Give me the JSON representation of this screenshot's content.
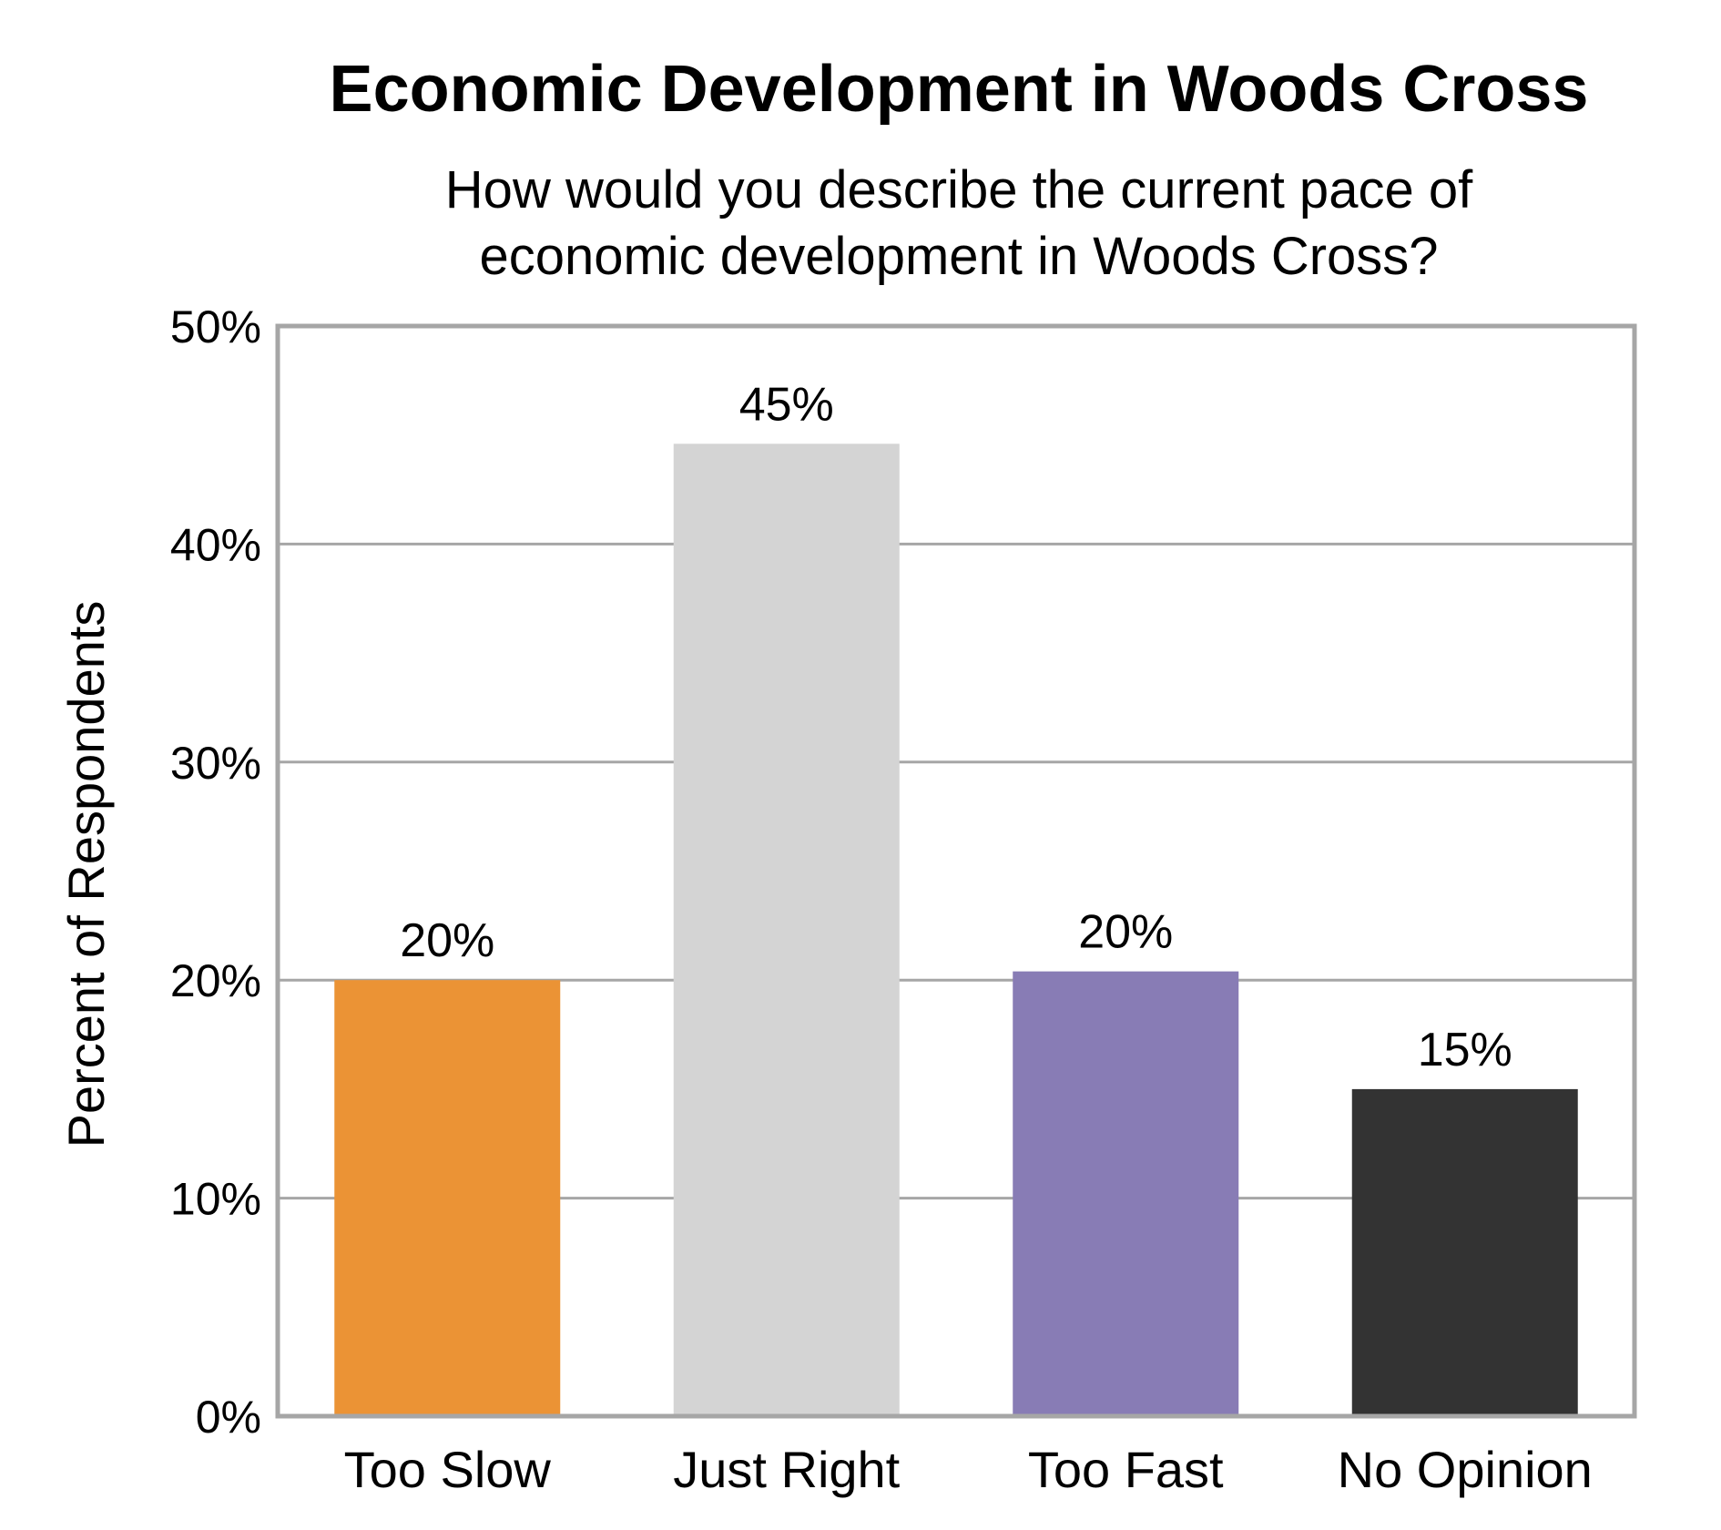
{
  "chart_data": {
    "type": "bar",
    "title": "Economic Development in Woods Cross",
    "subtitle_lines": [
      "How would you describe the current pace of",
      "economic development in Woods Cross?"
    ],
    "xlabel": "",
    "ylabel": "Percent of Respondents",
    "ylim": [
      0,
      50
    ],
    "y_ticks": [
      0,
      10,
      20,
      30,
      40,
      50
    ],
    "y_tick_labels": [
      "0%",
      "10%",
      "20%",
      "30%",
      "40%",
      "50%"
    ],
    "categories": [
      "Too Slow",
      "Just Right",
      "Too Fast",
      "No Opinion"
    ],
    "values": [
      20,
      44.6,
      20.4,
      15
    ],
    "data_labels": [
      "20%",
      "45%",
      "20%",
      "15%"
    ],
    "bar_colors": [
      "#eb9335",
      "#d4d4d4",
      "#887cb5",
      "#333333"
    ],
    "grid": true,
    "legend": "none"
  }
}
